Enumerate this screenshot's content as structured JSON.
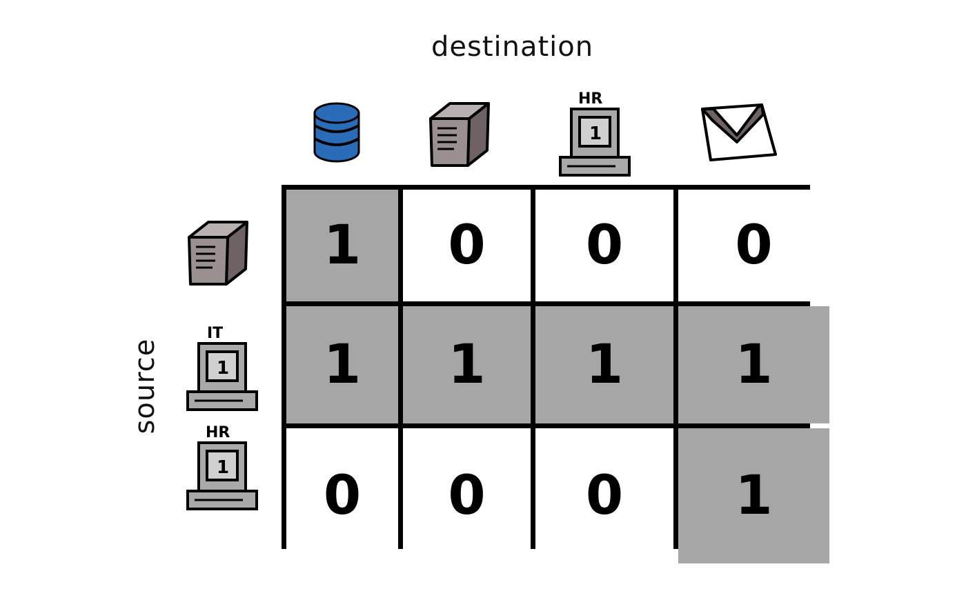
{
  "axes": {
    "column_label": "destination",
    "row_label": "source"
  },
  "columns": [
    {
      "icon": "database-icon",
      "color": "#2b6cb8"
    },
    {
      "icon": "server-icon",
      "color": "#7a6d6d"
    },
    {
      "icon": "hr-computer-icon",
      "badge": "HR",
      "screen": "1"
    },
    {
      "icon": "email-envelope-icon",
      "color": "#7a6d6d"
    }
  ],
  "rows": [
    {
      "icon": "server-icon",
      "color": "#7a6d6d"
    },
    {
      "icon": "it-computer-icon",
      "badge": "IT",
      "screen": "1"
    },
    {
      "icon": "hr-computer-icon",
      "badge": "HR",
      "screen": "1"
    }
  ],
  "matrix": [
    [
      "1",
      "0",
      "0",
      "0"
    ],
    [
      "1",
      "1",
      "1",
      "1"
    ],
    [
      "0",
      "0",
      "0",
      "1"
    ]
  ],
  "colors": {
    "allowed_fill": "#a6a6a6",
    "blocked_fill": "#ffffff",
    "grid_line": "#000000"
  }
}
